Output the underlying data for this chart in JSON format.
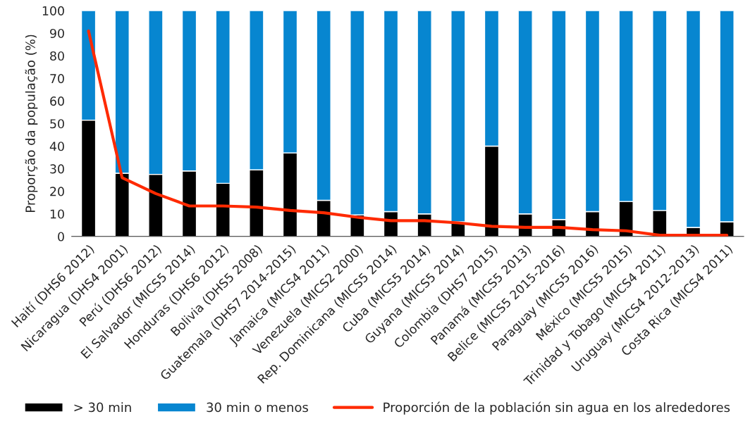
{
  "chart_data": {
    "type": "bar",
    "stacked": true,
    "ylabel": "Proporção da população (%)",
    "categories": [
      "Haití (DHS6 2012)",
      "Nicaragua (DHS4 2001)",
      "Perú (DHS6 2012)",
      "El Salvador (MICS5 2014)",
      "Honduras (DHS6 2012)",
      "Bolivia (DHS5 2008)",
      "Guatemala (DHS7 2014-2015)",
      "Jamaica (MICS4 2011)",
      "Venezuela (MICS2 2000)",
      "Rep. Dominicana (MICS5 2014)",
      "Cuba (MICS5 2014)",
      "Guyana (MICS5 2014)",
      "Colombia (DHS7 2015)",
      "Panamá (MICS5 2013)",
      "Belice (MICS5 2015-2016)",
      "Paraguay (MICS5 2016)",
      "México (MICS5 2015)",
      "Trinidad y Tobago (MICS4 2011)",
      "Uruguay (MICS4 2012-2013)",
      "Costa Rica (MICS4 2011)"
    ],
    "series": [
      {
        "name": "> 30 min",
        "color": "#000000",
        "values": [
          51.5,
          28,
          27.5,
          29,
          23.5,
          29.5,
          37,
          16,
          9.5,
          11,
          10,
          6.5,
          40,
          10,
          7.5,
          11,
          15.5,
          11.5,
          4,
          6.5
        ]
      },
      {
        "name": "30 min o menos",
        "color": "#0786d0",
        "values": [
          48.5,
          72,
          72.5,
          71,
          76.5,
          70.5,
          63,
          84,
          90.5,
          89,
          90,
          93.5,
          60,
          90,
          92.5,
          89,
          84.5,
          88.5,
          96,
          93.5
        ]
      },
      {
        "name": "Proporción de la población sin agua en los alrededores",
        "type": "line",
        "color": "#ff2a00",
        "values": [
          91,
          26,
          19,
          13.5,
          13.5,
          13,
          11.5,
          10.5,
          8.5,
          7,
          7,
          6,
          4.5,
          4,
          4,
          3,
          2.5,
          0.5,
          0.5,
          0.5
        ]
      }
    ],
    "ylim": [
      0,
      100
    ],
    "yticks": [
      0,
      10,
      20,
      30,
      40,
      50,
      60,
      70,
      80,
      90,
      100
    ],
    "legend": "bottom"
  }
}
